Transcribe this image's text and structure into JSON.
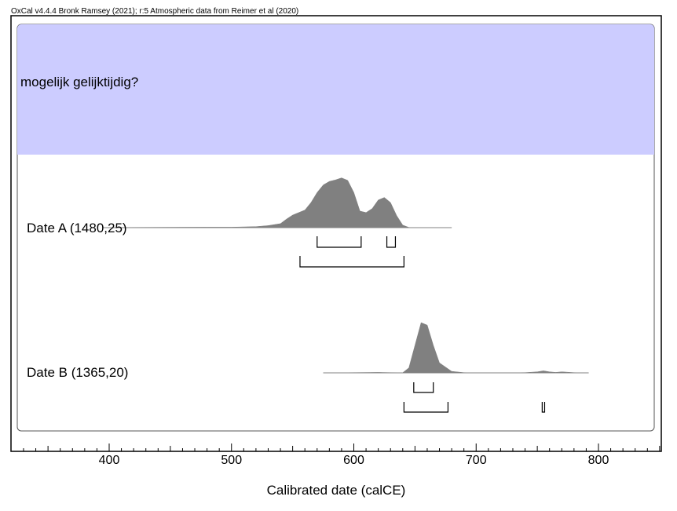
{
  "header": "OxCal v4.4.4 Bronk Ramsey (2021); r:5 Atmospheric data from Reimer et al (2020)",
  "colors": {
    "group_fill": "#ccccff",
    "distribution_fill": "#808080",
    "frame": "#000000",
    "panel_border": "#555555"
  },
  "chart_data": {
    "type": "area",
    "group_label": "mogelijk gelijktijdig?",
    "xlabel": "Calibrated date (calCE)",
    "xlim": [
      320,
      850
    ],
    "xticks": [
      400,
      500,
      600,
      700,
      800
    ],
    "grid": false,
    "series": [
      {
        "name": "Date A (1480,25)",
        "x": [
          395,
          420,
          450,
          480,
          500,
          520,
          530,
          540,
          545,
          550,
          555,
          560,
          565,
          570,
          575,
          580,
          585,
          590,
          595,
          600,
          605,
          610,
          615,
          620,
          625,
          630,
          635,
          640,
          645,
          650,
          655,
          660,
          665,
          670,
          675,
          680
        ],
        "density": [
          0,
          0.005,
          0.008,
          0.01,
          0.01,
          0.02,
          0.04,
          0.08,
          0.17,
          0.25,
          0.3,
          0.35,
          0.5,
          0.7,
          0.85,
          0.92,
          0.95,
          0.99,
          0.94,
          0.7,
          0.33,
          0.3,
          0.38,
          0.55,
          0.6,
          0.5,
          0.24,
          0.05,
          0.005,
          0,
          0,
          0,
          0,
          0,
          0,
          0
        ],
        "ranges_1sigma": [
          [
            570,
            606
          ],
          [
            627,
            634
          ]
        ],
        "ranges_2sigma": [
          [
            556,
            641
          ]
        ]
      },
      {
        "name": "Date B (1365,20)",
        "x": [
          575,
          600,
          620,
          630,
          640,
          645,
          650,
          655,
          660,
          665,
          670,
          680,
          690,
          700,
          720,
          740,
          750,
          755,
          760,
          765,
          770,
          780,
          792
        ],
        "density": [
          0,
          0.005,
          0.01,
          0.005,
          0.003,
          0.1,
          0.55,
          1.0,
          0.95,
          0.55,
          0.2,
          0.03,
          0.005,
          0,
          0,
          0.005,
          0.02,
          0.04,
          0.02,
          0.01,
          0.02,
          0.005,
          0
        ],
        "ranges_1sigma": [
          [
            649,
            665
          ]
        ],
        "ranges_2sigma": [
          [
            641,
            677
          ],
          [
            754,
            756
          ]
        ]
      }
    ]
  }
}
